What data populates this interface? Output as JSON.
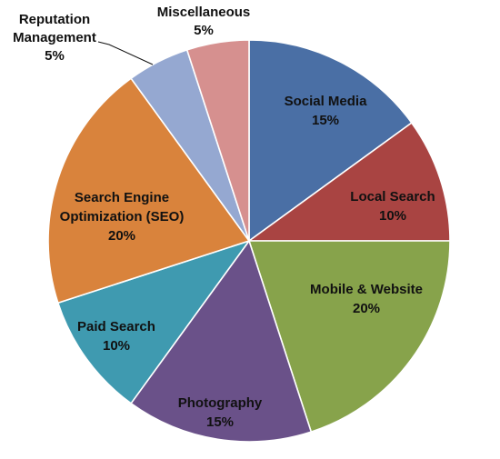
{
  "chart_data": {
    "type": "pie",
    "title": "",
    "slices": [
      {
        "label_lines": [
          "Social Media",
          "15%"
        ],
        "value": 15,
        "color": "#4A6FA5"
      },
      {
        "label_lines": [
          "Local Search",
          "10%"
        ],
        "value": 10,
        "color": "#A94442"
      },
      {
        "label_lines": [
          "Mobile & Website",
          "20%"
        ],
        "value": 20,
        "color": "#87A34B"
      },
      {
        "label_lines": [
          "Photography",
          "15%"
        ],
        "value": 15,
        "color": "#6A5189"
      },
      {
        "label_lines": [
          "Paid Search",
          "10%"
        ],
        "value": 10,
        "color": "#3F9AB0"
      },
      {
        "label_lines": [
          "Search Engine",
          "Optimization (SEO)",
          "20%"
        ],
        "value": 20,
        "color": "#D9833C"
      },
      {
        "label_lines": [
          "Reputation",
          "Management",
          "5%"
        ],
        "value": 5,
        "color": "#95A8D1"
      },
      {
        "label_lines": [
          "Miscellaneous",
          "5%"
        ],
        "value": 5,
        "color": "#D6908F"
      }
    ],
    "start_angle_deg": 0,
    "direction": "clockwise",
    "legend": "none"
  }
}
